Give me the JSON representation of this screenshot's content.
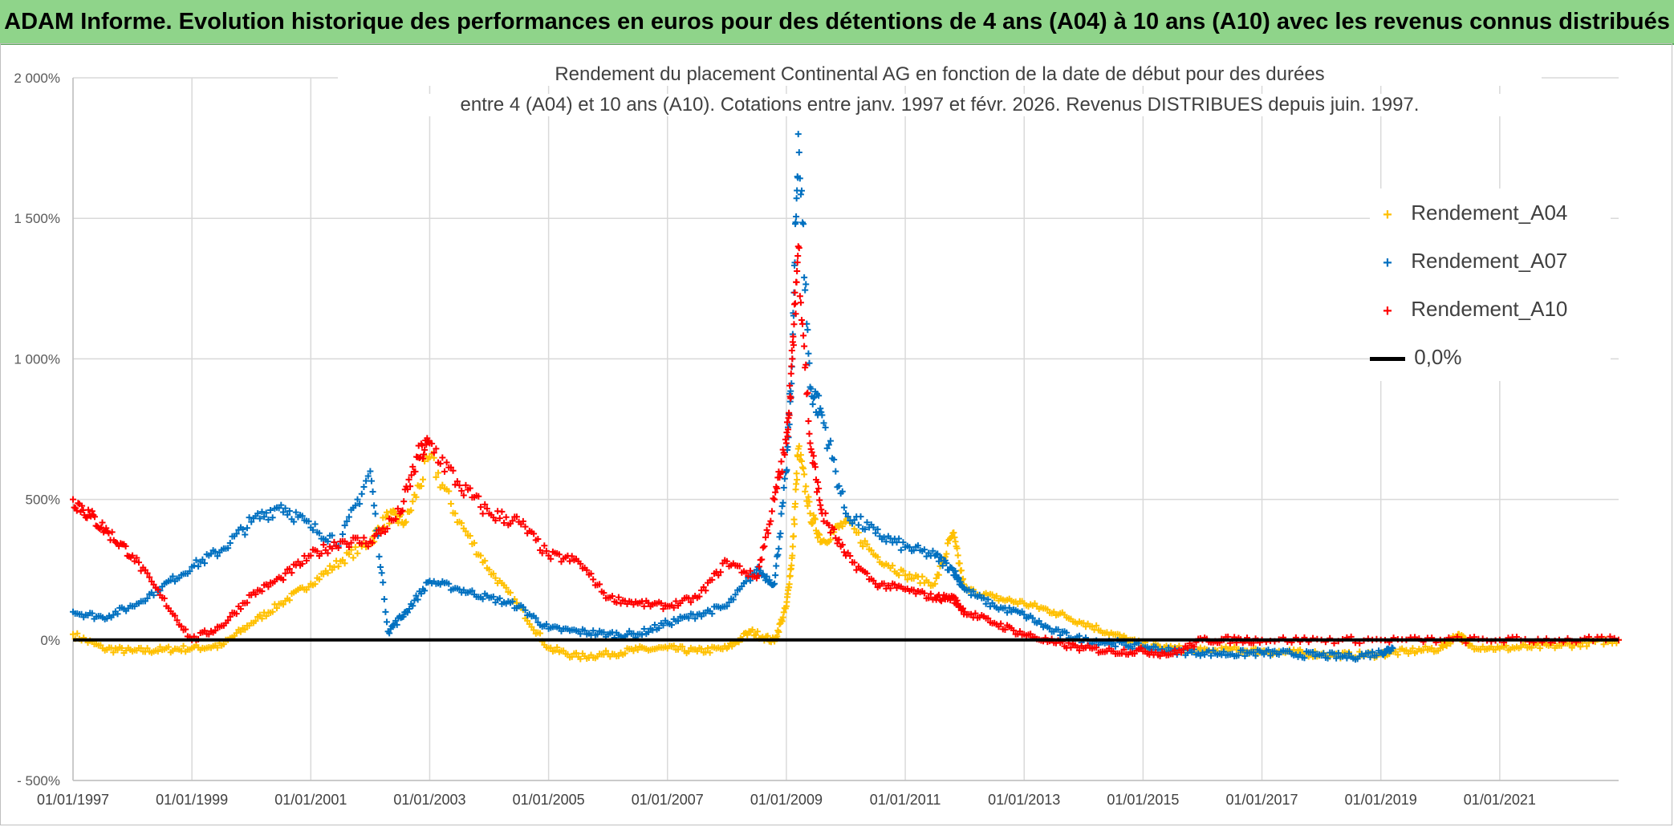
{
  "header": {
    "banner_title": "ADAM Informe. Evolution historique des performances en euros pour des détentions de 4 ans (A04) à 10 ans (A10) avec les revenus connus distribués"
  },
  "colors": {
    "banner_bg": "#8fd48a",
    "A04": "#ffc000",
    "A07": "#0070c0",
    "A10": "#ff0000",
    "zero_line": "#000000"
  },
  "chart_data": {
    "type": "scatter",
    "title_line1": "Rendement du placement Continental AG en fonction de la date de début pour des durées",
    "title_line2": "entre 4 (A04) et 10 ans (A10). Cotations entre janv. 1997 et févr. 2026. Revenus DISTRIBUES depuis juin. 1997.",
    "xlabel": "",
    "ylabel": "",
    "x_range": [
      1997.0,
      2023.0
    ],
    "ylim": [
      -500,
      2000
    ],
    "y_ticks": [
      -500,
      0,
      500,
      1000,
      1500,
      2000
    ],
    "y_tick_labels": [
      "- 500%",
      "0%",
      "500%",
      "1 000%",
      "1 500%",
      "2 000%"
    ],
    "x_ticks": [
      1997,
      1999,
      2001,
      2003,
      2005,
      2007,
      2009,
      2011,
      2013,
      2015,
      2017,
      2019,
      2021
    ],
    "x_tick_labels": [
      "01/01/1997",
      "01/01/1999",
      "01/01/2001",
      "01/01/2003",
      "01/01/2005",
      "01/01/2007",
      "01/01/2009",
      "01/01/2011",
      "01/01/2013",
      "01/01/2015",
      "01/01/2017",
      "01/01/2019",
      "01/01/2021"
    ],
    "grid": true,
    "legend_position": "top-right",
    "series": [
      {
        "name": "Rendement_A04",
        "marker": "+",
        "x": [
          1997.0,
          1997.5,
          1998.0,
          1998.5,
          1999.0,
          1999.5,
          2000.0,
          2000.5,
          2001.0,
          2001.5,
          2002.0,
          2002.3,
          2002.6,
          2003.0,
          2003.5,
          2004.0,
          2004.5,
          2005.0,
          2005.5,
          2006.0,
          2006.5,
          2007.0,
          2007.5,
          2008.0,
          2008.4,
          2008.8,
          2009.0,
          2009.1,
          2009.2,
          2009.4,
          2009.6,
          2010.0,
          2010.5,
          2011.0,
          2011.5,
          2011.8,
          2012.0,
          2012.5,
          2013.0,
          2013.5,
          2014.0,
          2014.5,
          2015.0,
          2015.5,
          2016.0,
          2016.5,
          2017.0,
          2017.5,
          2018.0,
          2018.5,
          2019.0,
          2019.5,
          2020.0,
          2020.3,
          2020.5,
          2021.0,
          2021.5,
          2022.0,
          2022.5,
          2023.0
        ],
        "y": [
          20,
          -30,
          -40,
          -35,
          -30,
          -20,
          60,
          130,
          200,
          280,
          350,
          440,
          420,
          650,
          420,
          250,
          120,
          -30,
          -60,
          -50,
          -35,
          -30,
          -40,
          -30,
          30,
          -5,
          120,
          300,
          680,
          450,
          350,
          420,
          300,
          230,
          200,
          380,
          180,
          150,
          130,
          100,
          60,
          20,
          -20,
          -30,
          -40,
          -35,
          -40,
          -45,
          -50,
          -55,
          -50,
          -40,
          -30,
          20,
          -20,
          -30,
          -25,
          -20,
          -10,
          0
        ]
      },
      {
        "name": "Rendement_A07",
        "marker": "+",
        "x": [
          1997.0,
          1997.5,
          1998.0,
          1998.5,
          1999.0,
          1999.5,
          2000.0,
          2000.5,
          2001.0,
          2001.5,
          2002.0,
          2002.3,
          2002.6,
          2003.0,
          2003.5,
          2004.0,
          2004.5,
          2005.0,
          2005.5,
          2006.0,
          2006.5,
          2007.0,
          2007.5,
          2008.0,
          2008.5,
          2008.8,
          2009.0,
          2009.1,
          2009.2,
          2009.4,
          2009.6,
          2010.0,
          2010.5,
          2011.0,
          2011.5,
          2011.8,
          2012.0,
          2012.5,
          2013.0,
          2013.5,
          2014.0,
          2014.5,
          2015.0,
          2015.5,
          2016.0,
          2016.5,
          2017.0,
          2017.5,
          2018.0,
          2018.5,
          2019.0,
          2019.2
        ],
        "y": [
          100,
          80,
          120,
          190,
          260,
          320,
          420,
          480,
          400,
          350,
          600,
          30,
          100,
          210,
          180,
          150,
          120,
          40,
          30,
          20,
          20,
          60,
          90,
          120,
          250,
          200,
          600,
          1000,
          1800,
          900,
          800,
          450,
          380,
          330,
          300,
          250,
          180,
          120,
          90,
          30,
          0,
          -10,
          -25,
          -40,
          -45,
          -50,
          -45,
          -50,
          -55,
          -60,
          -45,
          -30
        ]
      },
      {
        "name": "Rendement_A10",
        "marker": "+",
        "x": [
          1997.0,
          1997.3,
          1997.6,
          1998.0,
          1998.5,
          1999.0,
          1999.5,
          2000.0,
          2000.5,
          2001.0,
          2001.5,
          2002.0,
          2002.5,
          2002.8,
          2003.0,
          2003.5,
          2004.0,
          2004.5,
          2005.0,
          2005.5,
          2006.0,
          2006.5,
          2007.0,
          2007.5,
          2008.0,
          2008.5,
          2008.8,
          2009.0,
          2009.1,
          2009.2,
          2009.4,
          2009.6,
          2010.0,
          2010.5,
          2011.0,
          2011.5,
          2011.8,
          2012.0,
          2012.5,
          2013.0,
          2013.5,
          2014.0,
          2014.5,
          2015.0,
          2015.5,
          2016.0,
          2016.5,
          2017.0,
          2018.0,
          2019.0,
          2020.0,
          2021.0,
          2022.0,
          2023.0
        ],
        "y": [
          500,
          440,
          380,
          300,
          150,
          0,
          50,
          160,
          220,
          300,
          350,
          350,
          450,
          650,
          700,
          550,
          450,
          420,
          300,
          280,
          150,
          130,
          120,
          150,
          280,
          220,
          500,
          700,
          1000,
          1400,
          700,
          450,
          300,
          200,
          180,
          150,
          150,
          100,
          60,
          20,
          -10,
          -30,
          -40,
          -40,
          -50,
          0,
          0,
          0,
          0,
          0,
          0,
          0,
          0,
          0
        ]
      },
      {
        "name": "0,0%",
        "marker": "line",
        "x": [
          1997.0,
          2023.0
        ],
        "y": [
          0,
          0
        ]
      }
    ]
  }
}
